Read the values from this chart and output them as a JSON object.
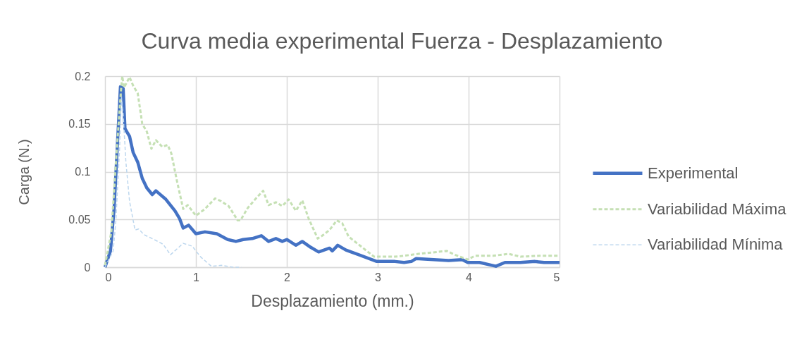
{
  "chart_data": {
    "type": "line",
    "title": "Curva media experimental Fuerza - Desplazamiento",
    "xlabel": "Desplazamiento (mm.)",
    "ylabel": "Carga (N.)",
    "xlim": [
      0,
      5
    ],
    "xticks": [
      0,
      1,
      2,
      3,
      4,
      5
    ],
    "ylim": [
      0,
      0.2
    ],
    "yticks": [
      0,
      0.05,
      0.1,
      0.15,
      0.2
    ],
    "grid": true,
    "legend": "right",
    "series": [
      {
        "name": "Experimental",
        "color": "#4472c4",
        "line_style": "solid",
        "x": [
          0,
          0.06,
          0.1,
          0.14,
          0.17,
          0.2,
          0.22,
          0.27,
          0.31,
          0.36,
          0.41,
          0.46,
          0.52,
          0.56,
          0.67,
          0.77,
          0.82,
          0.86,
          0.92,
          1.0,
          1.1,
          1.23,
          1.35,
          1.44,
          1.52,
          1.62,
          1.72,
          1.8,
          1.88,
          1.95,
          2.0,
          2.1,
          2.17,
          2.26,
          2.35,
          2.47,
          2.5,
          2.56,
          2.65,
          2.99,
          3.19,
          3.29,
          3.37,
          3.42,
          3.78,
          3.93,
          3.99,
          4.12,
          4.3,
          4.4,
          4.57,
          4.73,
          4.83,
          5.0
        ],
        "values": [
          0,
          0.017,
          0.061,
          0.135,
          0.189,
          0.187,
          0.145,
          0.137,
          0.12,
          0.11,
          0.093,
          0.083,
          0.076,
          0.08,
          0.071,
          0.059,
          0.051,
          0.041,
          0.044,
          0.035,
          0.037,
          0.035,
          0.029,
          0.027,
          0.029,
          0.03,
          0.033,
          0.027,
          0.03,
          0.027,
          0.029,
          0.023,
          0.027,
          0.021,
          0.016,
          0.02,
          0.017,
          0.023,
          0.018,
          0.006,
          0.006,
          0.005,
          0.006,
          0.009,
          0.007,
          0.008,
          0.005,
          0.005,
          0.001,
          0.005,
          0.005,
          0.006,
          0.005,
          0.005
        ]
      },
      {
        "name": "Variabilidad Máxima",
        "color": "#c5e0b4",
        "line_style": "dashed",
        "x": [
          0,
          0.07,
          0.12,
          0.175,
          0.19,
          0.21,
          0.27,
          0.31,
          0.36,
          0.41,
          0.46,
          0.51,
          0.56,
          0.63,
          0.69,
          0.73,
          0.79,
          0.86,
          0.91,
          1.0,
          1.1,
          1.21,
          1.28,
          1.36,
          1.46,
          1.49,
          1.57,
          1.66,
          1.74,
          1.8,
          1.88,
          1.95,
          2.02,
          2.1,
          2.17,
          2.24,
          2.34,
          2.39,
          2.47,
          2.55,
          2.61,
          2.68,
          2.96,
          3.06,
          3.19,
          3.29,
          3.45,
          3.76,
          3.85,
          3.99,
          4.07,
          4.27,
          4.44,
          4.57,
          4.78,
          5.0
        ],
        "values": [
          0.002,
          0.037,
          0.11,
          0.184,
          0.2,
          0.188,
          0.199,
          0.19,
          0.182,
          0.15,
          0.142,
          0.124,
          0.133,
          0.126,
          0.128,
          0.119,
          0.091,
          0.061,
          0.065,
          0.054,
          0.061,
          0.072,
          0.069,
          0.064,
          0.049,
          0.049,
          0.062,
          0.072,
          0.08,
          0.065,
          0.068,
          0.064,
          0.071,
          0.059,
          0.07,
          0.051,
          0.03,
          0.033,
          0.039,
          0.049,
          0.046,
          0.032,
          0.011,
          0.011,
          0.011,
          0.012,
          0.014,
          0.017,
          0.013,
          0.008,
          0.012,
          0.012,
          0.014,
          0.011,
          0.012,
          0.012
        ]
      },
      {
        "name": "Variabilidad Mínima",
        "color": "#bdd7ee",
        "line_style": "dashed",
        "x": [
          0,
          0.09,
          0.12,
          0.16,
          0.18,
          0.2,
          0.23,
          0.27,
          0.33,
          0.37,
          0.43,
          0.54,
          0.64,
          0.72,
          0.79,
          0.86,
          0.96,
          1.05,
          1.17,
          1.28,
          1.41,
          1.5
        ],
        "values": [
          0,
          0.017,
          0.049,
          0.123,
          0.177,
          0.16,
          0.11,
          0.069,
          0.039,
          0.04,
          0.034,
          0.029,
          0.024,
          0.013,
          0.019,
          0.025,
          0.022,
          0.011,
          0.001,
          0.002,
          0,
          0
        ]
      }
    ]
  }
}
